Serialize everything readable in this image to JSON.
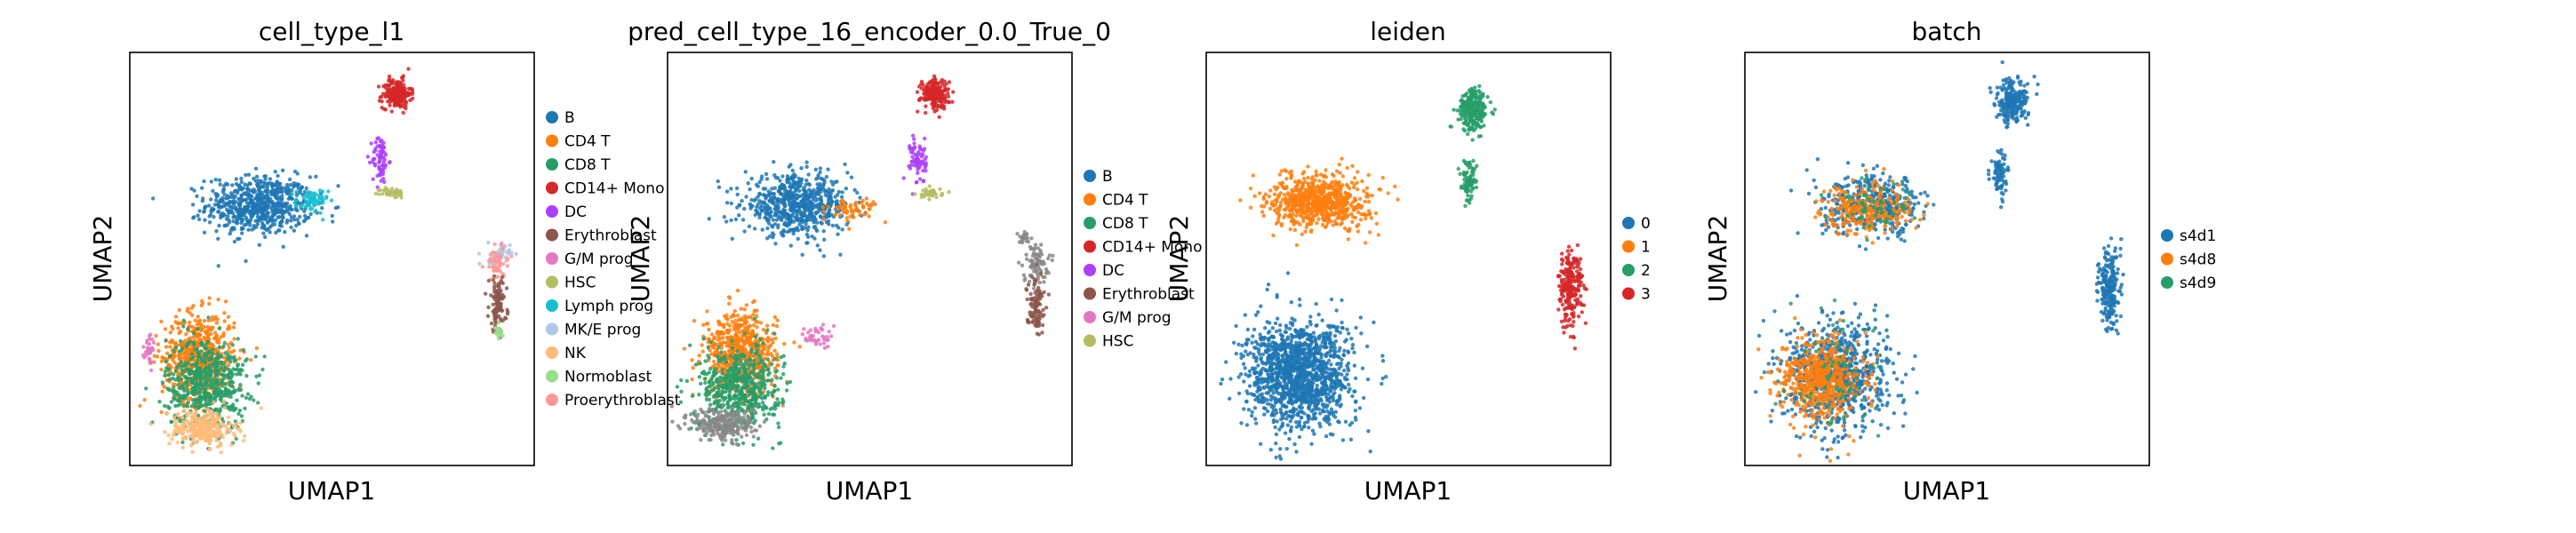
{
  "chart_data": [
    {
      "type": "scatter",
      "title": "cell_type_l1",
      "xlabel": "UMAP1",
      "ylabel": "UMAP2",
      "grid": false,
      "legend_placement": "right",
      "legend": [
        {
          "label": "B",
          "color": "#1f77b4"
        },
        {
          "label": "CD4 T",
          "color": "#ff7f0e"
        },
        {
          "label": "CD8 T",
          "color": "#279e68"
        },
        {
          "label": "CD14+ Mono",
          "color": "#d62728"
        },
        {
          "label": "DC",
          "color": "#aa40fc"
        },
        {
          "label": "Erythroblast",
          "color": "#8c564b"
        },
        {
          "label": "G/M prog",
          "color": "#e377c2"
        },
        {
          "label": "HSC",
          "color": "#b5bd61"
        },
        {
          "label": "Lymph prog",
          "color": "#17becf"
        },
        {
          "label": "MK/E prog",
          "color": "#aec7e8"
        },
        {
          "label": "NK",
          "color": "#ffbb78"
        },
        {
          "label": "Normoblast",
          "color": "#98df8a"
        },
        {
          "label": "Proerythroblast",
          "color": "#ff9896"
        }
      ],
      "clusters": [
        {
          "category": "B",
          "x": 3.2,
          "y": 6.3,
          "sx": 1.3,
          "sy": 0.7,
          "n": 650
        },
        {
          "category": "Lymph prog",
          "x": 4.5,
          "y": 6.4,
          "sx": 0.4,
          "sy": 0.3,
          "n": 60
        },
        {
          "category": "CD14+ Mono",
          "x": 6.6,
          "y": 9.0,
          "sx": 0.35,
          "sy": 0.35,
          "n": 200
        },
        {
          "category": "DC",
          "x": 6.2,
          "y": 7.4,
          "sx": 0.2,
          "sy": 0.6,
          "n": 70
        },
        {
          "category": "HSC",
          "x": 6.5,
          "y": 6.6,
          "sx": 0.3,
          "sy": 0.12,
          "n": 40
        },
        {
          "category": "CD4 T",
          "x": 1.7,
          "y": 2.6,
          "sx": 0.9,
          "sy": 1.1,
          "n": 600
        },
        {
          "category": "CD8 T",
          "x": 1.9,
          "y": 2.0,
          "sx": 1.0,
          "sy": 1.1,
          "n": 550
        },
        {
          "category": "NK",
          "x": 1.8,
          "y": 0.9,
          "sx": 0.8,
          "sy": 0.45,
          "n": 260
        },
        {
          "category": "G/M prog",
          "x": 0.5,
          "y": 2.8,
          "sx": 0.15,
          "sy": 0.4,
          "n": 30
        },
        {
          "category": "MK/E prog",
          "x": 9.1,
          "y": 5.1,
          "sx": 0.3,
          "sy": 0.25,
          "n": 40
        },
        {
          "category": "Proerythroblast",
          "x": 9.1,
          "y": 4.9,
          "sx": 0.3,
          "sy": 0.45,
          "n": 60
        },
        {
          "category": "Erythroblast",
          "x": 9.1,
          "y": 3.9,
          "sx": 0.22,
          "sy": 0.65,
          "n": 100
        },
        {
          "category": "Normoblast",
          "x": 9.1,
          "y": 3.2,
          "sx": 0.15,
          "sy": 0.2,
          "n": 20
        }
      ],
      "xlim": [
        0,
        10
      ],
      "ylim": [
        0,
        10
      ]
    },
    {
      "type": "scatter",
      "title": "pred_cell_type_16_encoder_0.0_True_0",
      "xlabel": "UMAP1",
      "ylabel": "UMAP2",
      "grid": false,
      "legend_placement": "right",
      "legend": [
        {
          "label": "B",
          "color": "#1f77b4"
        },
        {
          "label": "CD4 T",
          "color": "#ff7f0e"
        },
        {
          "label": "CD8 T",
          "color": "#279e68"
        },
        {
          "label": "CD14+ Mono",
          "color": "#d62728"
        },
        {
          "label": "DC",
          "color": "#aa40fc"
        },
        {
          "label": "Erythroblast",
          "color": "#8c564b"
        },
        {
          "label": "G/M prog",
          "color": "#e377c2"
        },
        {
          "label": "HSC",
          "color": "#b5bd61"
        }
      ],
      "clusters": [
        {
          "category": "B",
          "x": 3.2,
          "y": 6.3,
          "sx": 1.3,
          "sy": 0.7,
          "n": 650
        },
        {
          "category": "CD4 T",
          "x": 4.6,
          "y": 6.2,
          "sx": 0.6,
          "sy": 0.3,
          "n": 60
        },
        {
          "category": "CD14+ Mono",
          "x": 6.6,
          "y": 9.0,
          "sx": 0.35,
          "sy": 0.35,
          "n": 200
        },
        {
          "category": "DC",
          "x": 6.2,
          "y": 7.4,
          "sx": 0.2,
          "sy": 0.6,
          "n": 70
        },
        {
          "category": "HSC",
          "x": 6.5,
          "y": 6.6,
          "sx": 0.3,
          "sy": 0.12,
          "n": 40
        },
        {
          "category": "CD4 T",
          "x": 1.8,
          "y": 2.7,
          "sx": 0.9,
          "sy": 1.0,
          "n": 600
        },
        {
          "category": "CD8 T",
          "x": 1.8,
          "y": 1.9,
          "sx": 1.0,
          "sy": 1.0,
          "n": 550
        },
        {
          "category": "Proerythroblast",
          "x": 1.4,
          "y": 1.0,
          "sx": 0.8,
          "sy": 0.4,
          "n": 260
        },
        {
          "category": "G/M prog",
          "x": 3.7,
          "y": 3.1,
          "sx": 0.3,
          "sy": 0.3,
          "n": 40
        },
        {
          "category": "Proerythroblast",
          "x": 9.1,
          "y": 4.9,
          "sx": 0.3,
          "sy": 0.5,
          "n": 80
        },
        {
          "category": "Erythroblast",
          "x": 9.1,
          "y": 3.9,
          "sx": 0.22,
          "sy": 0.65,
          "n": 100
        },
        {
          "category": "Normoblast",
          "x": 8.8,
          "y": 5.5,
          "sx": 0.15,
          "sy": 0.15,
          "n": 20
        }
      ],
      "xlim": [
        0,
        10
      ],
      "ylim": [
        0,
        10
      ]
    },
    {
      "type": "scatter",
      "title": "leiden",
      "xlabel": "UMAP1",
      "ylabel": "UMAP2",
      "grid": false,
      "legend_placement": "right",
      "legend": [
        {
          "label": "0",
          "color": "#1f77b4"
        },
        {
          "label": "1",
          "color": "#ff7f0e"
        },
        {
          "label": "2",
          "color": "#279e68"
        },
        {
          "label": "3",
          "color": "#d62728"
        }
      ],
      "clusters": [
        {
          "category": "0",
          "x": 2.3,
          "y": 2.2,
          "sx": 1.3,
          "sy": 1.3,
          "n": 1400
        },
        {
          "category": "1",
          "x": 2.8,
          "y": 6.4,
          "sx": 1.2,
          "sy": 0.65,
          "n": 700
        },
        {
          "category": "2",
          "x": 6.6,
          "y": 8.6,
          "sx": 0.35,
          "sy": 0.5,
          "n": 250
        },
        {
          "category": "2",
          "x": 6.5,
          "y": 6.9,
          "sx": 0.2,
          "sy": 0.5,
          "n": 80
        },
        {
          "category": "3",
          "x": 9.0,
          "y": 4.3,
          "sx": 0.3,
          "sy": 1.0,
          "n": 220
        }
      ],
      "xlim": [
        0,
        10
      ],
      "ylim": [
        0,
        10
      ]
    },
    {
      "type": "scatter",
      "title": "batch",
      "xlabel": "UMAP1",
      "ylabel": "UMAP2",
      "grid": false,
      "legend_placement": "right",
      "legend": [
        {
          "label": "s4d1",
          "color": "#1f77b4"
        },
        {
          "label": "s4d8",
          "color": "#ff7f0e"
        },
        {
          "label": "s4d9",
          "color": "#279e68"
        }
      ],
      "clusters": [
        {
          "category": "s4d1",
          "x": 6.6,
          "y": 8.8,
          "sx": 0.4,
          "sy": 0.5,
          "n": 230
        },
        {
          "category": "s4d1",
          "x": 6.3,
          "y": 7.0,
          "sx": 0.2,
          "sy": 0.6,
          "n": 80
        },
        {
          "category": "s4d1",
          "x": 3.2,
          "y": 6.3,
          "sx": 1.3,
          "sy": 0.7,
          "n": 400
        },
        {
          "category": "s4d8",
          "x": 3.0,
          "y": 6.2,
          "sx": 1.1,
          "sy": 0.6,
          "n": 250
        },
        {
          "category": "s4d9",
          "x": 3.2,
          "y": 6.3,
          "sx": 1.2,
          "sy": 0.6,
          "n": 60
        },
        {
          "category": "s4d1",
          "x": 2.3,
          "y": 2.2,
          "sx": 1.3,
          "sy": 1.3,
          "n": 800
        },
        {
          "category": "s4d8",
          "x": 1.9,
          "y": 2.1,
          "sx": 1.0,
          "sy": 1.0,
          "n": 550
        },
        {
          "category": "s4d9",
          "x": 2.3,
          "y": 2.2,
          "sx": 1.2,
          "sy": 1.2,
          "n": 60
        },
        {
          "category": "s4d1",
          "x": 9.0,
          "y": 4.3,
          "sx": 0.25,
          "sy": 1.0,
          "n": 220
        }
      ],
      "xlim": [
        0,
        10
      ],
      "ylim": [
        0,
        10
      ]
    }
  ]
}
